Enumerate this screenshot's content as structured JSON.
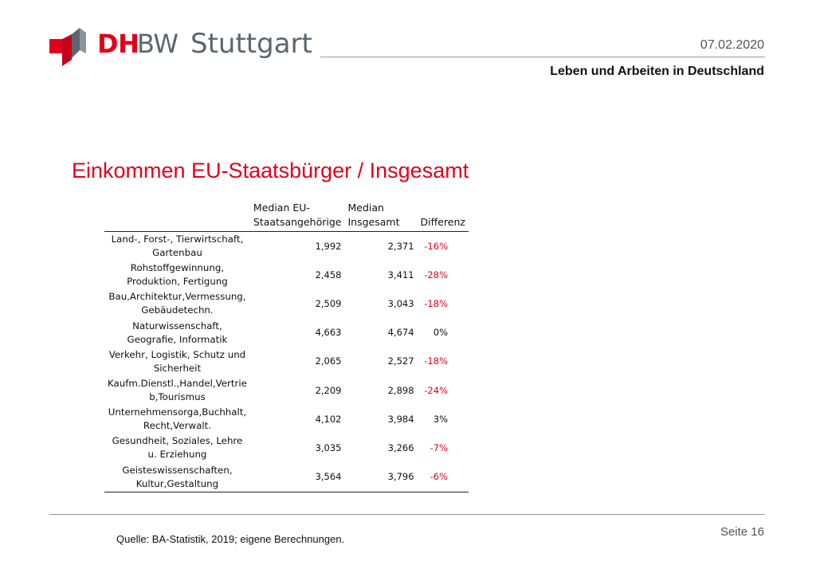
{
  "header": {
    "logo_primary": "DH",
    "logo_secondary": "BW",
    "logo_city": "Stuttgart",
    "date": "07.02.2020",
    "subject": "Leben und Arbeiten in Deutschland"
  },
  "slide": {
    "title": "Einkommen EU-Staatsbürger / Insgesamt"
  },
  "table": {
    "columns": [
      "",
      "Median EU-\nStaatsangehörige",
      "Median\nInsgesamt",
      "Differenz"
    ],
    "rows": [
      {
        "label": "Land-, Forst-, Tierwirtschaft, Gartenbau",
        "eu": "1,992",
        "total": "2,371",
        "diff": "-16%",
        "negative": true
      },
      {
        "label": "Rohstoffgewinnung, Produktion, Fertigung",
        "eu": "2,458",
        "total": "3,411",
        "diff": "-28%",
        "negative": true
      },
      {
        "label": "Bau,Architektur,Vermessung, Gebäudetechn.",
        "eu": "2,509",
        "total": "3,043",
        "diff": "-18%",
        "negative": true
      },
      {
        "label": "Naturwissenschaft, Geografie, Informatik",
        "eu": "4,663",
        "total": "4,674",
        "diff": "0%",
        "negative": false
      },
      {
        "label": "Verkehr, Logistik, Schutz und Sicherheit",
        "eu": "2,065",
        "total": "2,527",
        "diff": "-18%",
        "negative": true
      },
      {
        "label": "Kaufm.Dienstl.,Handel,Vertrie b,Tourismus",
        "eu": "2,209",
        "total": "2,898",
        "diff": "-24%",
        "negative": true
      },
      {
        "label": "Unternehmensorga,Buchhalt, Recht,Verwalt.",
        "eu": "4,102",
        "total": "3,984",
        "diff": "3%",
        "negative": false
      },
      {
        "label": "Gesundheit, Soziales, Lehre u. Erziehung",
        "eu": "3,035",
        "total": "3,266",
        "diff": "-7%",
        "negative": true
      },
      {
        "label": "Geisteswissenschaften, Kultur,Gestaltung",
        "eu": "3,564",
        "total": "3,796",
        "diff": "-6%",
        "negative": true
      }
    ]
  },
  "footer": {
    "source": "Quelle: BA-Statistik, 2019; eigene Berechnungen.",
    "page": "Seite 16"
  },
  "colors": {
    "accent_red": "#e2001a",
    "logo_gray": "#5b6670"
  }
}
